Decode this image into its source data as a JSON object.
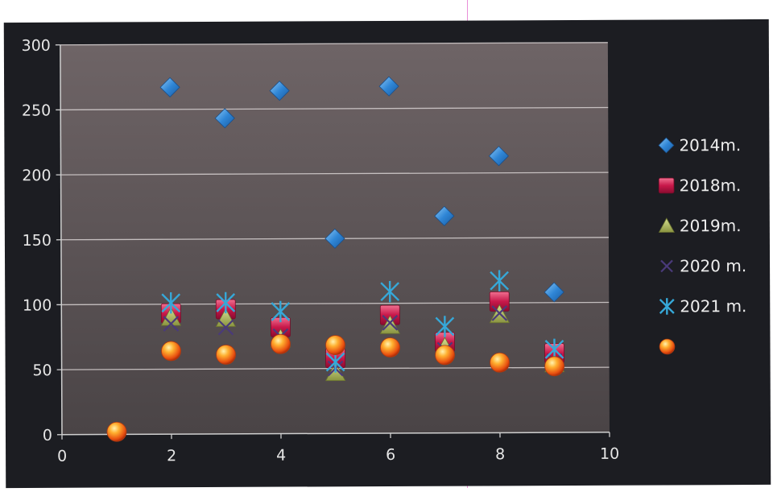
{
  "chart_data": {
    "type": "scatter",
    "title": "",
    "xlabel": "",
    "ylabel": "",
    "xlim": [
      0,
      10
    ],
    "ylim": [
      0,
      300
    ],
    "x_ticks": [
      "0",
      "2",
      "4",
      "6",
      "8",
      "10"
    ],
    "y_ticks": [
      "0",
      "50",
      "100",
      "150",
      "200",
      "250",
      "300"
    ],
    "grid": "horizontal",
    "legend_position": "right",
    "series": [
      {
        "name": "2014m.",
        "marker": "diamond",
        "color": "#2f86d6",
        "points": [
          [
            2,
            267
          ],
          [
            3,
            243
          ],
          [
            4,
            264
          ],
          [
            5,
            150
          ],
          [
            6,
            267
          ],
          [
            7,
            167
          ],
          [
            8,
            213
          ],
          [
            9,
            108
          ]
        ]
      },
      {
        "name": "2018m.",
        "marker": "square",
        "color": "#c8184a",
        "points": [
          [
            2,
            93
          ],
          [
            3,
            96
          ],
          [
            4,
            82
          ],
          [
            5,
            58
          ],
          [
            6,
            91
          ],
          [
            7,
            70
          ],
          [
            8,
            101
          ],
          [
            9,
            61
          ]
        ]
      },
      {
        "name": "2019m.",
        "marker": "triangle",
        "color": "#9aa54a",
        "points": [
          [
            2,
            90
          ],
          [
            3,
            89
          ],
          [
            4,
            73
          ],
          [
            5,
            47
          ],
          [
            6,
            83
          ],
          [
            7,
            66
          ],
          [
            8,
            91
          ],
          [
            9,
            53
          ]
        ]
      },
      {
        "name": "2020 m.",
        "marker": "x",
        "color": "#4a3a7a",
        "points": [
          [
            2,
            85
          ],
          [
            3,
            82
          ],
          [
            4,
            75
          ],
          [
            5,
            50
          ],
          [
            6,
            85
          ],
          [
            7,
            64
          ],
          [
            8,
            92
          ],
          [
            9,
            55
          ]
        ]
      },
      {
        "name": "2021 m.",
        "marker": "star",
        "color": "#36a8d8",
        "points": [
          [
            2,
            101
          ],
          [
            3,
            101
          ],
          [
            4,
            94
          ],
          [
            5,
            55
          ],
          [
            6,
            109
          ],
          [
            7,
            82
          ],
          [
            8,
            117
          ],
          [
            9,
            64
          ]
        ]
      },
      {
        "name": "",
        "marker": "sphere",
        "color": "#f06a18",
        "points": [
          [
            1,
            2
          ],
          [
            2,
            64
          ],
          [
            3,
            61
          ],
          [
            4,
            69
          ],
          [
            5,
            68
          ],
          [
            6,
            66
          ],
          [
            7,
            60
          ],
          [
            8,
            54
          ],
          [
            9,
            51
          ]
        ]
      }
    ]
  }
}
